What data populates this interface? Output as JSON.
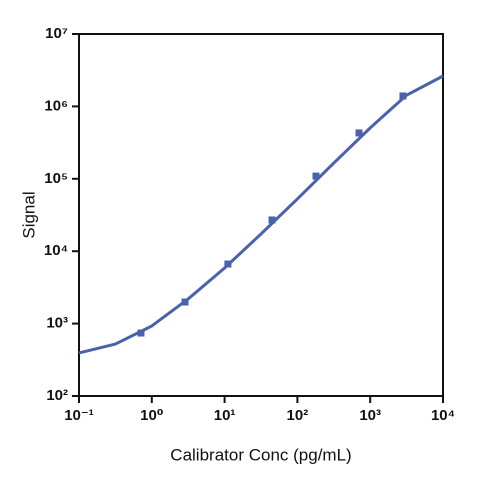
{
  "chart_data": {
    "type": "scatter",
    "xlabel": "Calibrator Conc (pg/mL)",
    "ylabel": "Signal",
    "log_x": true,
    "log_y": true,
    "color": "#4a61ab",
    "x": [
      0.71,
      2.86,
      11.1,
      44.8,
      180,
      702,
      2820
    ],
    "values": [
      741,
      1987,
      6650,
      27000,
      109000,
      430000,
      1393000
    ],
    "curve": {
      "x": [
        0.1,
        0.316,
        1,
        3.16,
        10,
        31.6,
        100,
        316,
        1000,
        3162,
        10000
      ],
      "values": [
        393,
        522,
        927,
        2190,
        5860,
        17300,
        52700,
        165000,
        505000,
        1430000,
        2630000
      ]
    },
    "xlim": [
      0.1,
      10000
    ],
    "ylim": [
      100,
      10000000
    ],
    "xticks": [
      {
        "value": 0.1,
        "label": "10⁻¹"
      },
      {
        "value": 1,
        "label": "10⁰"
      },
      {
        "value": 10,
        "label": "10¹"
      },
      {
        "value": 100,
        "label": "10²"
      },
      {
        "value": 1000,
        "label": "10³"
      },
      {
        "value": 10000,
        "label": "10⁴"
      }
    ],
    "yticks": [
      {
        "value": 100,
        "label": "10²"
      },
      {
        "value": 1000,
        "label": "10³"
      },
      {
        "value": 10000,
        "label": "10⁴"
      },
      {
        "value": 100000,
        "label": "10⁵"
      },
      {
        "value": 1000000,
        "label": "10⁶"
      },
      {
        "value": 10000000,
        "label": "10⁷"
      }
    ]
  }
}
